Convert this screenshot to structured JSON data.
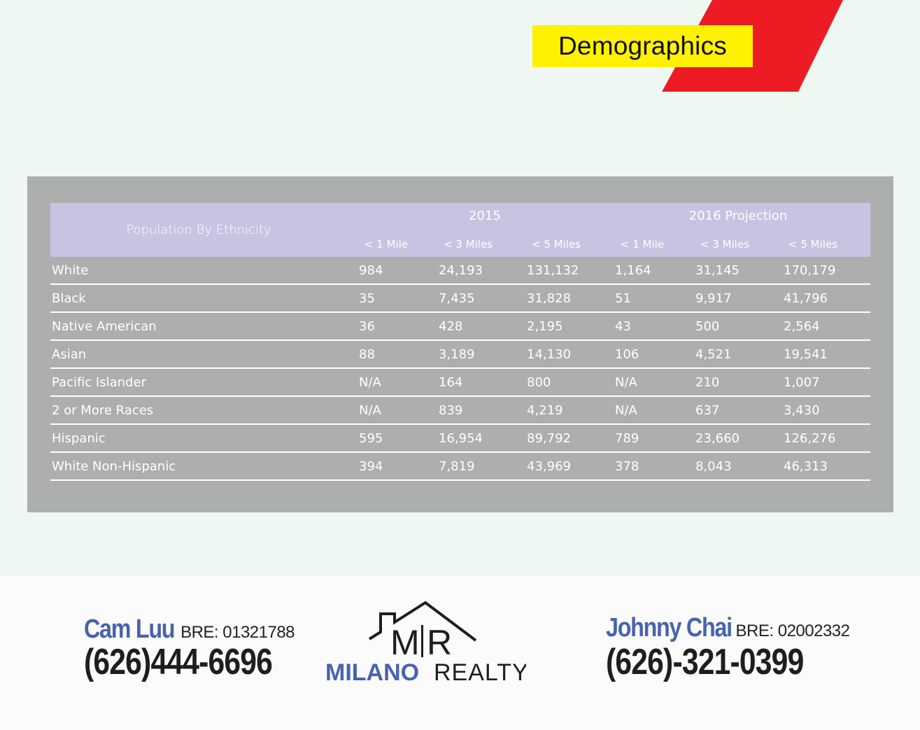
{
  "header": {
    "title": "Demographics",
    "colors": {
      "title_bg": "#fff200",
      "accent_shape": "#ed1c24",
      "page_bg": "#eef7f2",
      "panel_bg": "#acafae",
      "header_bg": "#c6c4e1"
    }
  },
  "table": {
    "row_header_label": "Population By Ethnicity",
    "groups": [
      "2015",
      "2016 Projection"
    ],
    "subheaders": [
      "< 1 Mile",
      "< 3 Miles",
      "< 5 Miles",
      "< 1 Mile",
      "< 3 Miles",
      "< 5 Miles"
    ],
    "rows": [
      {
        "label": "White",
        "values": [
          "984",
          "24,193",
          "131,132",
          "1,164",
          "31,145",
          "170,179"
        ]
      },
      {
        "label": "Black",
        "values": [
          "35",
          "7,435",
          "31,828",
          "51",
          "9,917",
          "41,796"
        ]
      },
      {
        "label": "Native American",
        "values": [
          "36",
          "428",
          "2,195",
          "43",
          "500",
          "2,564"
        ]
      },
      {
        "label": "Asian",
        "values": [
          "88",
          "3,189",
          "14,130",
          "106",
          "4,521",
          "19,541"
        ]
      },
      {
        "label": "Pacific Islander",
        "values": [
          "N/A",
          "164",
          "800",
          "N/A",
          "210",
          "1,007"
        ]
      },
      {
        "label": "2 or More Races",
        "values": [
          "N/A",
          "839",
          "4,219",
          "N/A",
          "637",
          "3,430"
        ]
      },
      {
        "label": "Hispanic",
        "values": [
          "595",
          "16,954",
          "89,792",
          "789",
          "23,660",
          "126,276"
        ]
      },
      {
        "label": "White Non-Hispanic",
        "values": [
          "394",
          "7,819",
          "43,969",
          "378",
          "8,043",
          "46,313"
        ]
      }
    ]
  },
  "footer": {
    "agent_left": {
      "name": "Cam Luu",
      "bre": "BRE: 01321788",
      "phone": "(626)444-6696"
    },
    "agent_right": {
      "name": "Johnny Chai",
      "bre": "BRE: 02002332",
      "phone": "(626)-321-0399"
    },
    "logo": {
      "initials_left": "M",
      "initials_right": "R",
      "brand_word1": "MILANO",
      "brand_word2": "REALTY",
      "brand_color": "#4863ae"
    }
  }
}
